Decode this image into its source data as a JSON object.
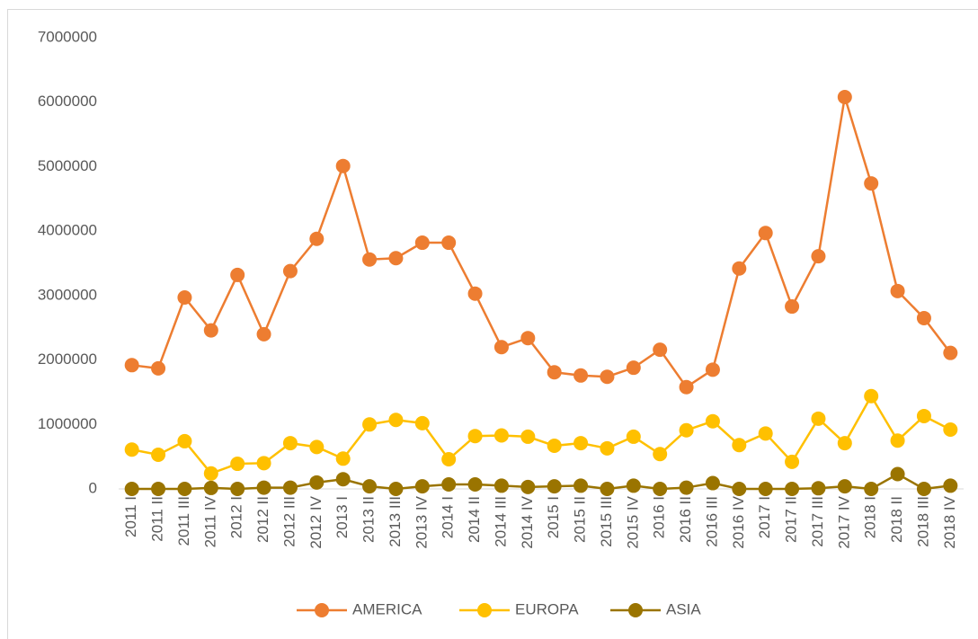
{
  "chart_data": {
    "type": "line",
    "categories": [
      "2011 I",
      "2011 II",
      "2011 III",
      "2011 IV",
      "2012 I",
      "2012 II",
      "2012 III",
      "2012 IV",
      "2013 I",
      "2013 II",
      "2013 III",
      "2013 IV",
      "2014 I",
      "2014 II",
      "2014 III",
      "2014 IV",
      "2015 I",
      "2015 II",
      "2015 III",
      "2015 IV",
      "2016 I",
      "2016 II",
      "2016 III",
      "2016 IV",
      "2017 I",
      "2017 II",
      "2017 III",
      "2017 IV",
      "2018 I",
      "2018 II",
      "2018 III",
      "2018 IV"
    ],
    "series": [
      {
        "name": "AMERICA",
        "color": "#ed7d31",
        "values": [
          1920000,
          1870000,
          2970000,
          2460000,
          3320000,
          2400000,
          3380000,
          3880000,
          5010000,
          3560000,
          3580000,
          3820000,
          3820000,
          3030000,
          2200000,
          2340000,
          1810000,
          1760000,
          1740000,
          1880000,
          2160000,
          1580000,
          1850000,
          3420000,
          3970000,
          2830000,
          3610000,
          6080000,
          4740000,
          3070000,
          2650000,
          2110000
        ]
      },
      {
        "name": "EUROPA",
        "color": "#ffc000",
        "values": [
          610000,
          530000,
          740000,
          240000,
          390000,
          400000,
          710000,
          650000,
          470000,
          1000000,
          1070000,
          1020000,
          460000,
          820000,
          830000,
          810000,
          670000,
          710000,
          630000,
          810000,
          540000,
          910000,
          1050000,
          680000,
          860000,
          420000,
          1090000,
          710000,
          1440000,
          750000,
          1130000,
          920000
        ]
      },
      {
        "name": "ASIA",
        "color": "#9a7400",
        "values": [
          0,
          0,
          0,
          15000,
          0,
          20000,
          20000,
          100000,
          150000,
          40000,
          0,
          40000,
          70000,
          70000,
          50000,
          30000,
          40000,
          50000,
          0,
          50000,
          0,
          20000,
          90000,
          0,
          0,
          0,
          10000,
          40000,
          0,
          230000,
          0,
          50000
        ]
      }
    ],
    "ylim": [
      0,
      7000000
    ],
    "yticks": [
      0,
      1000000,
      2000000,
      3000000,
      4000000,
      5000000,
      6000000,
      7000000
    ],
    "legend": "bottom"
  }
}
